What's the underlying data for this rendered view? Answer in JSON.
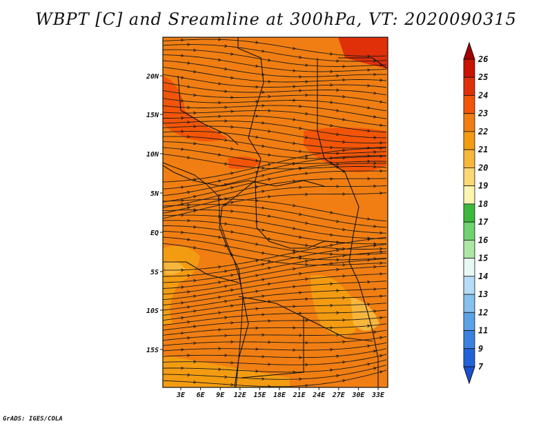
{
  "title": "WBPT [C] and Sreamline at 300hPa, VT: 2020090315",
  "credit": "GrADS: IGES/COLA",
  "map": {
    "variable": "WBPT",
    "units": "C",
    "level": "300hPa",
    "valid_time": "2020090315",
    "base_color": "#f07e12",
    "lat_labels": [
      "20N",
      "15N",
      "10N",
      "5N",
      "EQ",
      "5S",
      "10S",
      "15S"
    ],
    "lon_labels": [
      "3E",
      "6E",
      "9E",
      "12E",
      "15E",
      "18E",
      "21E",
      "24E",
      "27E",
      "30E",
      "33E"
    ]
  },
  "colorbar": {
    "levels": [
      "26",
      "25",
      "24",
      "23",
      "22",
      "21",
      "20",
      "19",
      "18",
      "17",
      "16",
      "15",
      "14",
      "13",
      "12",
      "11",
      "9",
      "7"
    ],
    "colors": [
      "#a50000",
      "#c81400",
      "#e0300a",
      "#f25508",
      "#f07e12",
      "#f39c12",
      "#f7b73d",
      "#fbd775",
      "#fdf4b0",
      "#3cb93c",
      "#6fd36f",
      "#aee6a6",
      "#e8f8f4",
      "#b7dcf7",
      "#85c0ef",
      "#5aa2e8",
      "#3b82e0",
      "#2163d6",
      "#1a4fcf"
    ]
  }
}
